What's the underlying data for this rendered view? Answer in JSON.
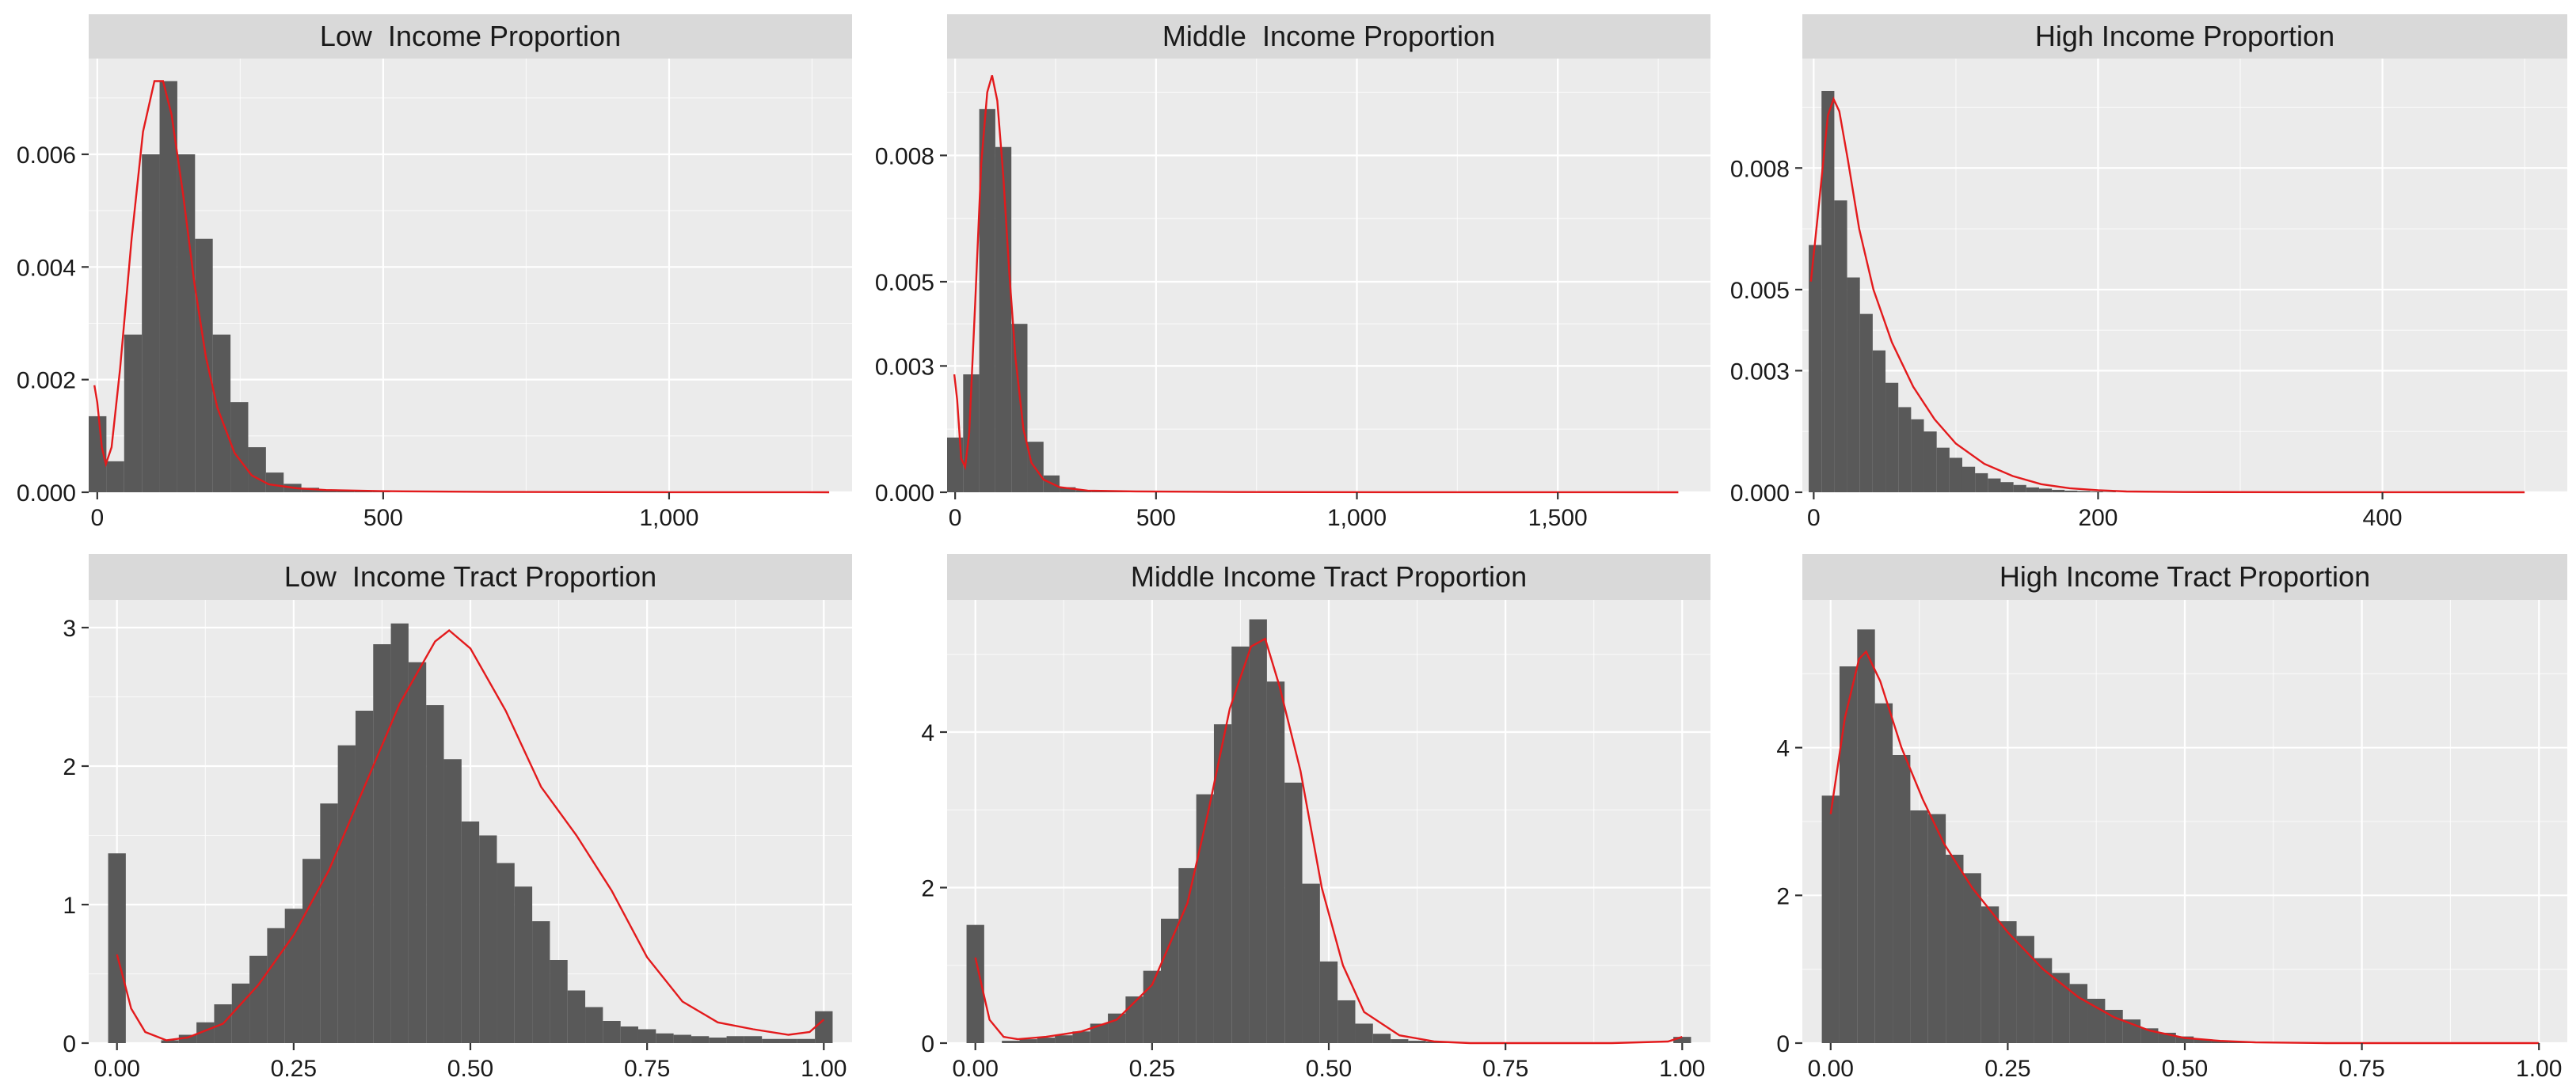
{
  "chart_data": [
    {
      "type": "histogram",
      "title": "Low  Income Proportion",
      "xlim": [
        -15,
        1320
      ],
      "ylim": [
        0,
        0.0077
      ],
      "xticks": [
        0,
        500,
        1000
      ],
      "xtick_labels": [
        "0",
        "500",
        "1,000"
      ],
      "yticks": [
        0,
        0.002,
        0.004,
        0.006
      ],
      "ytick_labels": [
        "0.000",
        "0.002",
        "0.004",
        "0.006"
      ],
      "bin_start": -15,
      "bin_width": 31,
      "values": [
        0.00135,
        0.00055,
        0.0028,
        0.006,
        0.0073,
        0.006,
        0.0045,
        0.0028,
        0.0016,
        0.0008,
        0.00035,
        0.00015,
        8e-05,
        5e-05,
        3e-05,
        2e-05,
        1e-05
      ],
      "density": [
        [
          -5,
          0.0019
        ],
        [
          0,
          0.0016
        ],
        [
          8,
          0.0008
        ],
        [
          15,
          0.0005
        ],
        [
          25,
          0.0008
        ],
        [
          40,
          0.0022
        ],
        [
          60,
          0.0045
        ],
        [
          80,
          0.0064
        ],
        [
          100,
          0.0073
        ],
        [
          115,
          0.0073
        ],
        [
          130,
          0.0067
        ],
        [
          150,
          0.0053
        ],
        [
          170,
          0.0037
        ],
        [
          190,
          0.0024
        ],
        [
          210,
          0.0015
        ],
        [
          240,
          0.0007
        ],
        [
          270,
          0.0003
        ],
        [
          300,
          0.00014
        ],
        [
          350,
          7e-05
        ],
        [
          400,
          4e-05
        ],
        [
          500,
          2e-05
        ],
        [
          700,
          5e-06
        ],
        [
          1000,
          2e-06
        ],
        [
          1280,
          0.0
        ]
      ]
    },
    {
      "type": "histogram",
      "title": "Middle  Income Proportion",
      "xlim": [
        -20,
        1880
      ],
      "ylim": [
        0,
        0.0103
      ],
      "xticks": [
        0,
        500,
        1000,
        1500
      ],
      "xtick_labels": [
        "0",
        "500",
        "1,000",
        "1,500"
      ],
      "yticks": [
        0,
        0.003,
        0.005,
        0.008
      ],
      "ytick_labels": [
        "0.000",
        "0.003",
        "0.005",
        "0.008"
      ],
      "bin_start": -20,
      "bin_width": 40,
      "values": [
        0.0013,
        0.0028,
        0.0091,
        0.0082,
        0.004,
        0.0012,
        0.0004,
        0.00012,
        5e-05,
        3e-05,
        2e-05,
        1e-05
      ],
      "density": [
        [
          -2,
          0.0028
        ],
        [
          5,
          0.0022
        ],
        [
          15,
          0.0008
        ],
        [
          25,
          0.0006
        ],
        [
          35,
          0.0014
        ],
        [
          50,
          0.0045
        ],
        [
          65,
          0.0078
        ],
        [
          80,
          0.0095
        ],
        [
          92,
          0.0099
        ],
        [
          105,
          0.0093
        ],
        [
          120,
          0.0075
        ],
        [
          135,
          0.0052
        ],
        [
          150,
          0.0032
        ],
        [
          170,
          0.0015
        ],
        [
          190,
          0.0007
        ],
        [
          220,
          0.0003
        ],
        [
          260,
          0.00012
        ],
        [
          330,
          4e-05
        ],
        [
          450,
          2e-05
        ],
        [
          700,
          5e-06
        ],
        [
          1100,
          2e-06
        ],
        [
          1800,
          0.0
        ]
      ]
    },
    {
      "type": "histogram",
      "title": "High Income Proportion",
      "xlim": [
        -8,
        530
      ],
      "ylim": [
        0,
        0.0107
      ],
      "xticks": [
        0,
        200,
        400
      ],
      "xtick_labels": [
        "0",
        "200",
        "400"
      ],
      "yticks": [
        0,
        0.003,
        0.005,
        0.008
      ],
      "ytick_labels": [
        "0.000",
        "0.003",
        "0.005",
        "0.008"
      ],
      "bin_start": -3.5,
      "bin_width": 9,
      "values": [
        0.0061,
        0.0099,
        0.0072,
        0.0053,
        0.0044,
        0.0035,
        0.0027,
        0.0021,
        0.0018,
        0.0015,
        0.0011,
        0.00085,
        0.00063,
        0.00047,
        0.00034,
        0.00025,
        0.00018,
        0.00012,
        9e-05,
        6e-05,
        4e-05,
        3e-05,
        2e-05,
        1e-05
      ],
      "density": [
        [
          -2,
          0.0052
        ],
        [
          4,
          0.0072
        ],
        [
          10,
          0.0093
        ],
        [
          14,
          0.0097
        ],
        [
          18,
          0.0094
        ],
        [
          24,
          0.0082
        ],
        [
          32,
          0.0065
        ],
        [
          42,
          0.005
        ],
        [
          55,
          0.0037
        ],
        [
          70,
          0.0026
        ],
        [
          85,
          0.0018
        ],
        [
          100,
          0.0012
        ],
        [
          120,
          0.0007
        ],
        [
          140,
          0.0004
        ],
        [
          160,
          0.0002
        ],
        [
          180,
          0.0001
        ],
        [
          200,
          5e-05
        ],
        [
          220,
          2e-05
        ],
        [
          260,
          5e-06
        ],
        [
          350,
          2e-06
        ],
        [
          500,
          0.0
        ]
      ]
    },
    {
      "type": "histogram",
      "title": "Low  Income Tract Proportion",
      "xlim": [
        -0.04,
        1.04
      ],
      "ylim": [
        0,
        3.2
      ],
      "xticks": [
        0,
        0.25,
        0.5,
        0.75,
        1
      ],
      "xtick_labels": [
        "0.00",
        "0.25",
        "0.50",
        "0.75",
        "1.00"
      ],
      "yticks": [
        0,
        1,
        2,
        3
      ],
      "ytick_labels": [
        "0",
        "1",
        "2",
        "3"
      ],
      "bin_start": -0.0125,
      "bin_width": 0.025,
      "values": [
        1.37,
        0,
        0,
        0.02,
        0.06,
        0.15,
        0.28,
        0.43,
        0.63,
        0.83,
        0.97,
        1.33,
        1.73,
        2.15,
        2.4,
        2.88,
        3.03,
        2.75,
        2.44,
        2.05,
        1.6,
        1.5,
        1.3,
        1.13,
        0.88,
        0.6,
        0.38,
        0.26,
        0.16,
        0.12,
        0.1,
        0.07,
        0.06,
        0.05,
        0.04,
        0.05,
        0.05,
        0.03,
        0.03,
        0.03,
        0.23
      ],
      "density": [
        [
          0,
          0.64
        ],
        [
          0.01,
          0.45
        ],
        [
          0.02,
          0.25
        ],
        [
          0.04,
          0.08
        ],
        [
          0.07,
          0.02
        ],
        [
          0.1,
          0.04
        ],
        [
          0.15,
          0.14
        ],
        [
          0.2,
          0.42
        ],
        [
          0.25,
          0.78
        ],
        [
          0.3,
          1.25
        ],
        [
          0.35,
          1.85
        ],
        [
          0.4,
          2.45
        ],
        [
          0.45,
          2.9
        ],
        [
          0.47,
          2.98
        ],
        [
          0.5,
          2.85
        ],
        [
          0.55,
          2.4
        ],
        [
          0.6,
          1.85
        ],
        [
          0.65,
          1.5
        ],
        [
          0.7,
          1.1
        ],
        [
          0.75,
          0.62
        ],
        [
          0.8,
          0.3
        ],
        [
          0.85,
          0.15
        ],
        [
          0.9,
          0.1
        ],
        [
          0.95,
          0.06
        ],
        [
          0.98,
          0.08
        ],
        [
          1.0,
          0.17
        ]
      ]
    },
    {
      "type": "histogram",
      "title": "Middle Income Tract Proportion",
      "xlim": [
        -0.04,
        1.04
      ],
      "ylim": [
        0,
        5.7
      ],
      "xticks": [
        0,
        0.25,
        0.5,
        0.75,
        1
      ],
      "xtick_labels": [
        "0.00",
        "0.25",
        "0.50",
        "0.75",
        "1.00"
      ],
      "yticks": [
        0,
        2,
        4
      ],
      "ytick_labels": [
        "0",
        "2",
        "4"
      ],
      "bin_start": -0.0125,
      "bin_width": 0.025,
      "values": [
        1.52,
        0,
        0.03,
        0.05,
        0.07,
        0.1,
        0.15,
        0.25,
        0.38,
        0.6,
        0.93,
        1.6,
        2.25,
        3.2,
        4.1,
        5.1,
        5.45,
        4.65,
        3.35,
        2.05,
        1.05,
        0.55,
        0.25,
        0.12,
        0.05,
        0.03,
        0.02,
        0.01,
        0,
        0,
        0,
        0,
        0,
        0,
        0,
        0,
        0,
        0,
        0,
        0,
        0.08
      ],
      "density": [
        [
          0,
          1.1
        ],
        [
          0.01,
          0.7
        ],
        [
          0.02,
          0.3
        ],
        [
          0.04,
          0.08
        ],
        [
          0.06,
          0.05
        ],
        [
          0.1,
          0.08
        ],
        [
          0.15,
          0.15
        ],
        [
          0.2,
          0.3
        ],
        [
          0.25,
          0.75
        ],
        [
          0.3,
          1.8
        ],
        [
          0.33,
          3.0
        ],
        [
          0.36,
          4.3
        ],
        [
          0.39,
          5.1
        ],
        [
          0.41,
          5.2
        ],
        [
          0.43,
          4.6
        ],
        [
          0.46,
          3.5
        ],
        [
          0.49,
          2.0
        ],
        [
          0.52,
          1.0
        ],
        [
          0.55,
          0.4
        ],
        [
          0.6,
          0.1
        ],
        [
          0.65,
          0.02
        ],
        [
          0.7,
          0.0
        ],
        [
          0.9,
          0.0
        ],
        [
          0.98,
          0.02
        ],
        [
          1.0,
          0.08
        ]
      ]
    },
    {
      "type": "histogram",
      "title": "High Income Tract Proportion",
      "xlim": [
        -0.04,
        1.04
      ],
      "ylim": [
        0,
        6.0
      ],
      "xticks": [
        0,
        0.25,
        0.5,
        0.75,
        1
      ],
      "xtick_labels": [
        "0.00",
        "0.25",
        "0.50",
        "0.75",
        "1.00"
      ],
      "yticks": [
        0,
        2,
        4
      ],
      "ytick_labels": [
        "0",
        "2",
        "4"
      ],
      "bin_start": -0.0125,
      "bin_width": 0.025,
      "values": [
        3.35,
        5.1,
        5.6,
        4.6,
        3.9,
        3.15,
        3.1,
        2.55,
        2.3,
        1.85,
        1.65,
        1.45,
        1.15,
        0.95,
        0.8,
        0.6,
        0.45,
        0.32,
        0.2,
        0.14,
        0.09,
        0.05,
        0.03,
        0.02,
        0.01,
        0.01,
        0,
        0,
        0,
        0,
        0,
        0,
        0,
        0,
        0,
        0,
        0,
        0,
        0,
        0,
        0
      ],
      "density": [
        [
          0,
          3.1
        ],
        [
          0.02,
          4.4
        ],
        [
          0.04,
          5.2
        ],
        [
          0.05,
          5.3
        ],
        [
          0.07,
          4.9
        ],
        [
          0.1,
          4.0
        ],
        [
          0.13,
          3.3
        ],
        [
          0.16,
          2.7
        ],
        [
          0.2,
          2.1
        ],
        [
          0.25,
          1.5
        ],
        [
          0.3,
          1.0
        ],
        [
          0.35,
          0.62
        ],
        [
          0.4,
          0.35
        ],
        [
          0.45,
          0.17
        ],
        [
          0.5,
          0.07
        ],
        [
          0.55,
          0.03
        ],
        [
          0.6,
          0.01
        ],
        [
          0.7,
          0.0
        ],
        [
          1.0,
          0.0
        ]
      ]
    }
  ]
}
